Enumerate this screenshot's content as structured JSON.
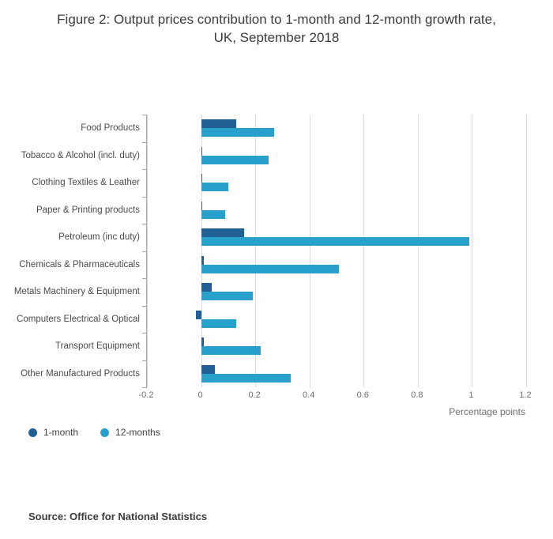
{
  "header": {
    "title_line1": "Figure 2: Output prices contribution to 1-month and 12-month growth rate,",
    "title_line2": "UK, September 2018"
  },
  "chart_data": {
    "type": "bar",
    "orientation": "horizontal",
    "title": "Figure 2: Output prices contribution to 1-month and 12-month growth rate, UK, September 2018",
    "categories": [
      "Food Products",
      "Tobacco & Alcohol (incl. duty)",
      "Clothing Textiles & Leather",
      "Paper & Printing products",
      "Petroleum (inc duty)",
      "Chemicals & Pharmaceuticals",
      "Metals Machinery & Equipment",
      "Computers Electrical & Optical",
      "Transport Equipment",
      "Other Manufactured Products"
    ],
    "series": [
      {
        "name": "1-month",
        "color": "#206095",
        "values": [
          0.13,
          0.0,
          0.0,
          0.0,
          0.16,
          0.01,
          0.04,
          -0.02,
          0.01,
          0.05
        ]
      },
      {
        "name": "12-months",
        "color": "#27a0cc",
        "values": [
          0.27,
          0.25,
          0.1,
          0.09,
          0.99,
          0.51,
          0.19,
          0.13,
          0.22,
          0.33
        ]
      }
    ],
    "xlabel": "Percentage points",
    "xlim": [
      -0.2,
      1.2
    ],
    "xticks": [
      -0.2,
      0,
      0.2,
      0.4,
      0.6,
      0.8,
      1,
      1.2
    ],
    "xtick_labels": [
      "-0.2",
      "0",
      "0.2",
      "0.4",
      "0.6",
      "0.8",
      "1",
      "1.2"
    ],
    "grid": true,
    "legend_position": "bottom-left"
  },
  "source": {
    "text": "Source: Office for National Statistics"
  }
}
